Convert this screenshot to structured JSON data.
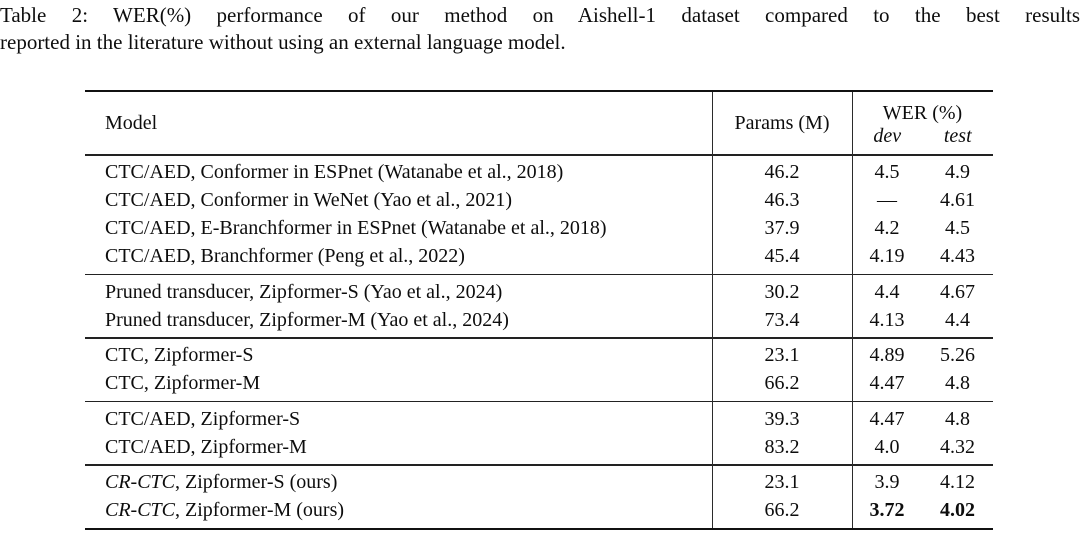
{
  "caption": {
    "line1": "Table 2: WER(%) performance of our method on Aishell-1 dataset compared to the best results",
    "line2": "reported in the literature without using an external language model."
  },
  "table": {
    "headers": {
      "model": "Model",
      "params": "Params (M)",
      "wer": "WER (%)",
      "dev": "dev",
      "test": "test"
    },
    "groups": [
      {
        "rows": [
          {
            "model_italic": "",
            "model": "CTC/AED, Conformer in ESPnet (Watanabe et al., 2018)",
            "params": "46.2",
            "dev": "4.5",
            "test": "4.9",
            "bold_wer": false
          },
          {
            "model_italic": "",
            "model": "CTC/AED, Conformer in WeNet (Yao et al., 2021)",
            "params": "46.3",
            "dev": "—",
            "test": "4.61",
            "bold_wer": false
          },
          {
            "model_italic": "",
            "model": "CTC/AED, E-Branchformer in ESPnet (Watanabe et al., 2018)",
            "params": "37.9",
            "dev": "4.2",
            "test": "4.5",
            "bold_wer": false
          },
          {
            "model_italic": "",
            "model": "CTC/AED, Branchformer (Peng et al., 2022)",
            "params": "45.4",
            "dev": "4.19",
            "test": "4.43",
            "bold_wer": false
          }
        ]
      },
      {
        "rows": [
          {
            "model_italic": "",
            "model": "Pruned transducer, Zipformer-S (Yao et al., 2024)",
            "params": "30.2",
            "dev": "4.4",
            "test": "4.67",
            "bold_wer": false
          },
          {
            "model_italic": "",
            "model": "Pruned transducer, Zipformer-M (Yao et al., 2024)",
            "params": "73.4",
            "dev": "4.13",
            "test": "4.4",
            "bold_wer": false
          }
        ]
      },
      {
        "rows": [
          {
            "model_italic": "",
            "model": "CTC, Zipformer-S",
            "params": "23.1",
            "dev": "4.89",
            "test": "5.26",
            "bold_wer": false
          },
          {
            "model_italic": "",
            "model": "CTC, Zipformer-M",
            "params": "66.2",
            "dev": "4.47",
            "test": "4.8",
            "bold_wer": false
          }
        ]
      },
      {
        "rows": [
          {
            "model_italic": "",
            "model": "CTC/AED, Zipformer-S",
            "params": "39.3",
            "dev": "4.47",
            "test": "4.8",
            "bold_wer": false
          },
          {
            "model_italic": "",
            "model": "CTC/AED, Zipformer-M",
            "params": "83.2",
            "dev": "4.0",
            "test": "4.32",
            "bold_wer": false
          }
        ]
      },
      {
        "rows": [
          {
            "model_italic": "CR-CTC",
            "model": ", Zipformer-S (ours)",
            "params": "23.1",
            "dev": "3.9",
            "test": "4.12",
            "bold_wer": false
          },
          {
            "model_italic": "CR-CTC",
            "model": ", Zipformer-M (ours)",
            "params": "66.2",
            "dev": "3.72",
            "test": "4.02",
            "bold_wer": true
          }
        ]
      }
    ]
  }
}
